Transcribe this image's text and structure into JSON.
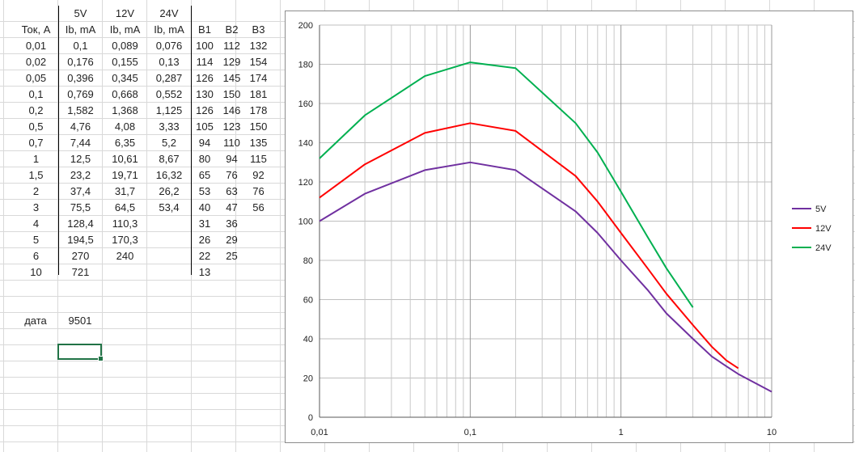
{
  "sheet": {
    "headers_row1": [
      "",
      "5V",
      "12V",
      "24V",
      "",
      "",
      ""
    ],
    "headers_row2": [
      "Ток, А",
      "Ib, mA",
      "Ib, mA",
      "Ib, mA",
      "B1",
      "B2",
      "B3"
    ],
    "rows": [
      [
        "0,01",
        "0,1",
        "0,089",
        "0,076",
        "100",
        "112",
        "132"
      ],
      [
        "0,02",
        "0,176",
        "0,155",
        "0,13",
        "114",
        "129",
        "154"
      ],
      [
        "0,05",
        "0,396",
        "0,345",
        "0,287",
        "126",
        "145",
        "174"
      ],
      [
        "0,1",
        "0,769",
        "0,668",
        "0,552",
        "130",
        "150",
        "181"
      ],
      [
        "0,2",
        "1,582",
        "1,368",
        "1,125",
        "126",
        "146",
        "178"
      ],
      [
        "0,5",
        "4,76",
        "4,08",
        "3,33",
        "105",
        "123",
        "150"
      ],
      [
        "0,7",
        "7,44",
        "6,35",
        "5,2",
        "94",
        "110",
        "135"
      ],
      [
        "1",
        "12,5",
        "10,61",
        "8,67",
        "80",
        "94",
        "115"
      ],
      [
        "1,5",
        "23,2",
        "19,71",
        "16,32",
        "65",
        "76",
        "92"
      ],
      [
        "2",
        "37,4",
        "31,7",
        "26,2",
        "53",
        "63",
        "76"
      ],
      [
        "3",
        "75,5",
        "64,5",
        "53,4",
        "40",
        "47",
        "56"
      ],
      [
        "4",
        "128,4",
        "110,3",
        "",
        "31",
        "36",
        ""
      ],
      [
        "5",
        "194,5",
        "170,3",
        "",
        "26",
        "29",
        ""
      ],
      [
        "6",
        "270",
        "240",
        "",
        "22",
        "25",
        ""
      ],
      [
        "10",
        "721",
        "",
        "",
        "13",
        "",
        ""
      ]
    ],
    "date_label": "дата",
    "date_value": "9501"
  },
  "chart_data": {
    "type": "line",
    "x_scale": "log",
    "xlim": [
      0.01,
      10
    ],
    "ylim": [
      0,
      200
    ],
    "y_ticks": [
      "0",
      "20",
      "40",
      "60",
      "80",
      "100",
      "120",
      "140",
      "160",
      "180",
      "200"
    ],
    "x_ticks": [
      "0,01",
      "0,1",
      "1",
      "10"
    ],
    "grid": true,
    "legend_position": "right",
    "series": [
      {
        "name": "5V",
        "color": "#7030a0",
        "x": [
          0.01,
          0.02,
          0.05,
          0.1,
          0.2,
          0.5,
          0.7,
          1,
          1.5,
          2,
          3,
          4,
          5,
          6,
          10
        ],
        "y": [
          100,
          114,
          126,
          130,
          126,
          105,
          94,
          80,
          65,
          53,
          40,
          31,
          26,
          22,
          13
        ]
      },
      {
        "name": "12V",
        "color": "#ff0000",
        "x": [
          0.01,
          0.02,
          0.05,
          0.1,
          0.2,
          0.5,
          0.7,
          1,
          1.5,
          2,
          3,
          4,
          5,
          6
        ],
        "y": [
          112,
          129,
          145,
          150,
          146,
          123,
          110,
          94,
          76,
          63,
          47,
          36,
          29,
          25
        ]
      },
      {
        "name": "24V",
        "color": "#00b050",
        "x": [
          0.01,
          0.02,
          0.05,
          0.1,
          0.2,
          0.5,
          0.7,
          1,
          1.5,
          2,
          3
        ],
        "y": [
          132,
          154,
          174,
          181,
          178,
          150,
          135,
          115,
          92,
          76,
          56
        ]
      }
    ]
  }
}
